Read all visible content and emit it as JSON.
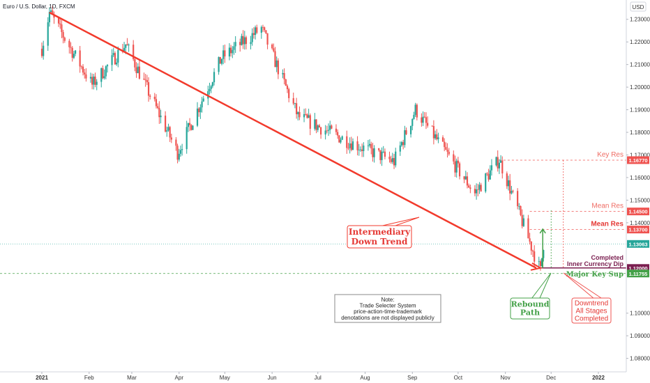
{
  "header": {
    "title": "Euro / U.S. Dollar, 1D, FXCM",
    "currency": "USD"
  },
  "colors": {
    "up": "#26a69a",
    "down": "#ef5350",
    "trend": "#f23a2c",
    "green": "#43a047",
    "purple": "#7b1f50",
    "teal": "#26a69a"
  },
  "chart_data": {
    "type": "candlestick",
    "x_ticks": [
      "2021",
      "Feb",
      "Mar",
      "Apr",
      "May",
      "Jun",
      "Jul",
      "Aug",
      "Sep",
      "Oct",
      "Nov",
      "Dec",
      "2022"
    ],
    "y_ticks": [
      "1.23000",
      "1.22000",
      "1.21000",
      "1.20000",
      "1.19000",
      "1.18000",
      "1.17000",
      "1.16000",
      "1.15000",
      "1.14000",
      "1.10000",
      "1.09000",
      "1.08000"
    ],
    "ylim": [
      1.0765,
      1.2367
    ],
    "price_series_approx": [
      {
        "date": "2021-01-01",
        "close": 1.217
      },
      {
        "date": "2021-01-06",
        "close": 1.233
      },
      {
        "date": "2021-02-03",
        "close": 1.201
      },
      {
        "date": "2021-02-25",
        "close": 1.219
      },
      {
        "date": "2021-03-31",
        "close": 1.171
      },
      {
        "date": "2021-04-29",
        "close": 1.213
      },
      {
        "date": "2021-05-25",
        "close": 1.226
      },
      {
        "date": "2021-06-18",
        "close": 1.187
      },
      {
        "date": "2021-07-21",
        "close": 1.176
      },
      {
        "date": "2021-08-20",
        "close": 1.167
      },
      {
        "date": "2021-09-03",
        "close": 1.19
      },
      {
        "date": "2021-10-12",
        "close": 1.153
      },
      {
        "date": "2021-10-28",
        "close": 1.168
      },
      {
        "date": "2021-11-24",
        "close": 1.1186
      },
      {
        "date": "2021-11-26",
        "close": 1.1306
      }
    ],
    "price_labels": [
      {
        "text": "1.16770",
        "value": 1.1677,
        "color": "#ef5350"
      },
      {
        "text": "1.14500",
        "value": 1.145,
        "color": "#ef5350"
      },
      {
        "text": "1.13700",
        "value": 1.137,
        "color": "#ef5350"
      },
      {
        "text": "1.13063",
        "value": 1.13063,
        "color": "#26a69a"
      },
      {
        "text": "1.12000",
        "value": 1.12,
        "color": "#7b1f50"
      },
      {
        "text": "1.11755",
        "value": 1.11755,
        "color": "#43a047"
      }
    ],
    "levels": [
      {
        "label": "Key Res",
        "value": 1.1677
      },
      {
        "label": "Mean Res",
        "value": 1.145
      },
      {
        "label": "Mean Res",
        "value": 1.137
      },
      {
        "label": "Completed",
        "label2": "Inner Currency Dip",
        "value": 1.12
      },
      {
        "label": "Major Key Sup",
        "value": 1.11755
      }
    ],
    "trendline": {
      "label": "Intermediary Down Trend",
      "from": {
        "date": "2021-01-06",
        "value": 1.233
      },
      "to": {
        "date": "2021-11-24",
        "value": 1.12
      }
    },
    "annotations": {
      "trend_box": [
        "Intermediary",
        "Down Trend"
      ],
      "note_box": [
        "Note:",
        "Trade Selecter System",
        "price-action-time-trademark",
        "denotations are not displayed publicly"
      ],
      "rebound_box": [
        "Rebound",
        "Path"
      ],
      "downtrend_box": [
        "Downtrend",
        "All Stages",
        "Completed"
      ]
    }
  }
}
